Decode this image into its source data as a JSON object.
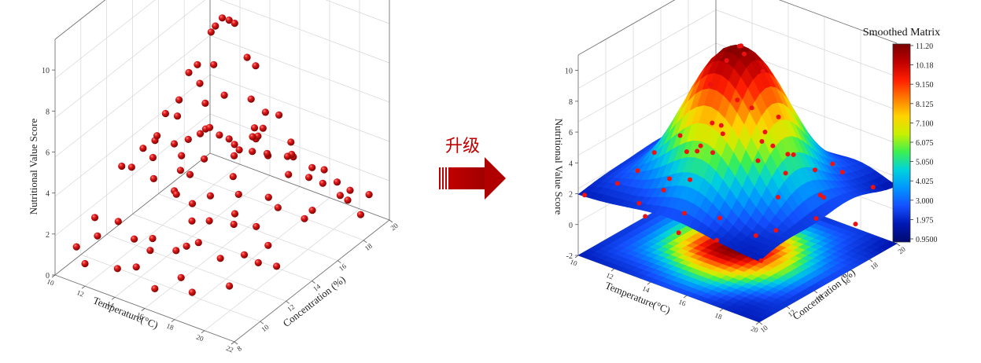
{
  "upgrade_label": "升级",
  "colors": {
    "dot": "#c41414",
    "arrow": "#c00000",
    "axis": "#444444",
    "grid": "#d6d6d6"
  },
  "chart_data": [
    {
      "type": "scatter",
      "title": "",
      "xlabel": "Temperature(°C)",
      "ylabel": "Concentration (%)",
      "zlabel": "Nutritional Value Score",
      "xlim": [
        10,
        22
      ],
      "ylim": [
        8,
        20
      ],
      "zlim": [
        0,
        11.5
      ],
      "x_ticks": [
        "10",
        "12",
        "14",
        "16",
        "18",
        "20",
        "22"
      ],
      "y_ticks": [
        "8",
        "10",
        "12",
        "14",
        "16",
        "18",
        "20"
      ],
      "z_ticks": [
        "0",
        "2",
        "4",
        "6",
        "8",
        "10"
      ],
      "grid": true,
      "points": [
        [
          16.0,
          14.0,
          11.2
        ],
        [
          16.2,
          14.3,
          11.0
        ],
        [
          15.8,
          13.7,
          10.9
        ],
        [
          16.4,
          14.5,
          10.8
        ],
        [
          15.6,
          13.6,
          10.6
        ],
        [
          15.2,
          13.0,
          9.2
        ],
        [
          16.8,
          15.0,
          9.0
        ],
        [
          14.8,
          12.8,
          8.8
        ],
        [
          17.2,
          15.2,
          8.6
        ],
        [
          15.0,
          14.5,
          8.4
        ],
        [
          17.0,
          13.0,
          8.2
        ],
        [
          14.5,
          14.0,
          7.6
        ],
        [
          17.5,
          14.5,
          7.4
        ],
        [
          13.8,
          13.2,
          7.0
        ],
        [
          18.2,
          14.8,
          6.8
        ],
        [
          13.5,
          12.5,
          6.6
        ],
        [
          18.5,
          15.5,
          6.4
        ],
        [
          14.0,
          15.0,
          6.0
        ],
        [
          18.0,
          13.0,
          5.8
        ],
        [
          13.0,
          14.0,
          5.6
        ],
        [
          19.0,
          14.0,
          5.4
        ],
        [
          15.0,
          12.0,
          5.2
        ],
        [
          17.0,
          16.0,
          5.1
        ],
        [
          12.5,
          13.0,
          5.0
        ],
        [
          19.5,
          15.0,
          4.9
        ],
        [
          16.0,
          11.5,
          4.8
        ],
        [
          16.0,
          16.5,
          4.6
        ],
        [
          12.0,
          12.5,
          4.5
        ],
        [
          20.0,
          14.5,
          4.4
        ],
        [
          14.0,
          11.0,
          4.3
        ],
        [
          18.0,
          17.0,
          4.2
        ],
        [
          11.5,
          14.0,
          4.0
        ],
        [
          20.5,
          15.5,
          3.9
        ],
        [
          13.0,
          16.5,
          3.8
        ],
        [
          19.0,
          11.5,
          3.7
        ],
        [
          11.0,
          12.0,
          3.6
        ],
        [
          21.0,
          16.0,
          3.5
        ],
        [
          15.0,
          17.5,
          3.4
        ],
        [
          17.0,
          10.5,
          3.3
        ],
        [
          12.0,
          16.0,
          3.2
        ],
        [
          20.0,
          12.0,
          3.1
        ],
        [
          10.8,
          13.0,
          3.0
        ],
        [
          21.5,
          14.0,
          2.9
        ],
        [
          14.5,
          18.5,
          2.8
        ],
        [
          17.5,
          9.5,
          2.7
        ],
        [
          11.5,
          17.5,
          2.6
        ],
        [
          20.5,
          10.5,
          2.6
        ],
        [
          13.0,
          18.0,
          2.5
        ],
        [
          19.5,
          9.8,
          2.5
        ],
        [
          10.5,
          15.0,
          2.4
        ],
        [
          21.8,
          17.0,
          2.4
        ],
        [
          12.5,
          10.0,
          2.3
        ],
        [
          16.5,
          18.8,
          2.3
        ],
        [
          15.5,
          9.0,
          2.2
        ],
        [
          11.0,
          18.5,
          2.2
        ],
        [
          21.0,
          11.0,
          2.1
        ],
        [
          14.0,
          9.5,
          2.1
        ],
        [
          18.5,
          19.0,
          2.0
        ],
        [
          10.2,
          17.0,
          2.0
        ],
        [
          20.8,
          9.0,
          1.9
        ],
        [
          13.5,
          19.5,
          1.9
        ],
        [
          18.0,
          8.5,
          1.8
        ],
        [
          11.8,
          9.2,
          1.8
        ],
        [
          16.0,
          19.5,
          1.7
        ],
        [
          10.5,
          10.5,
          1.7
        ],
        [
          21.5,
          19.0,
          1.6
        ],
        [
          12.5,
          19.0,
          1.6
        ],
        [
          19.0,
          8.2,
          1.5
        ],
        [
          15.0,
          8.5,
          1.5
        ],
        [
          20.0,
          18.5,
          1.4
        ],
        [
          11.0,
          8.5,
          1.4
        ],
        [
          17.0,
          19.8,
          1.3
        ],
        [
          14.0,
          8.2,
          1.3
        ],
        [
          21.8,
          18.0,
          1.2
        ],
        [
          10.8,
          19.8,
          1.2
        ],
        [
          19.8,
          19.5,
          1.1
        ],
        [
          12.0,
          8.0,
          1.1
        ],
        [
          16.5,
          8.2,
          1.0
        ],
        [
          13.0,
          19.8,
          1.0
        ],
        [
          18.5,
          20.0,
          0.9
        ],
        [
          15.5,
          15.5,
          3.6
        ],
        [
          16.5,
          12.5,
          3.4
        ],
        [
          14.5,
          12.5,
          4.1
        ],
        [
          17.5,
          15.8,
          4.0
        ],
        [
          13.5,
          15.5,
          2.9
        ],
        [
          18.5,
          12.0,
          2.8
        ],
        [
          15.0,
          16.0,
          2.2
        ],
        [
          17.0,
          11.0,
          2.0
        ],
        [
          16.0,
          13.0,
          1.8
        ],
        [
          14.0,
          14.0,
          1.6
        ],
        [
          18.0,
          16.0,
          1.5
        ],
        [
          12.5,
          14.5,
          1.4
        ],
        [
          19.5,
          13.5,
          1.3
        ],
        [
          15.5,
          11.0,
          1.2
        ],
        [
          16.5,
          17.0,
          1.1
        ],
        [
          13.5,
          11.5,
          1.0
        ],
        [
          19.0,
          17.5,
          0.9
        ],
        [
          11.5,
          15.5,
          0.8
        ],
        [
          20.5,
          13.0,
          0.8
        ],
        [
          14.5,
          17.0,
          0.7
        ]
      ]
    },
    {
      "type": "surface",
      "title": "",
      "xlabel": "Temperature(°C)",
      "ylabel": "Concentration (%)",
      "zlabel": "Nutritional Value Score",
      "xlim": [
        10,
        20
      ],
      "ylim": [
        10,
        20
      ],
      "zlim": [
        -2,
        11
      ],
      "x_ticks": [
        "10",
        "12",
        "14",
        "16",
        "18",
        "20"
      ],
      "y_ticks": [
        "10",
        "12",
        "14",
        "16",
        "18",
        "20"
      ],
      "z_ticks": [
        "-2",
        "0",
        "2",
        "4",
        "6",
        "8",
        "10"
      ],
      "grid": true,
      "surface_model": {
        "base": 1.9,
        "peak": 11.2,
        "center_x": 15,
        "center_y": 15,
        "sigma": 2.2
      },
      "has_contour_projection": true,
      "overlay_points": [
        [
          15.2,
          15.0,
          11.3
        ],
        [
          15.6,
          14.7,
          11.1
        ],
        [
          14.8,
          15.4,
          10.9
        ],
        [
          14.4,
          15.0,
          10.0
        ],
        [
          15.8,
          15.8,
          9.5
        ],
        [
          13.8,
          14.6,
          8.4
        ],
        [
          16.4,
          14.2,
          8.2
        ],
        [
          14.0,
          16.3,
          6.6
        ],
        [
          16.2,
          16.4,
          6.4
        ],
        [
          13.6,
          15.0,
          5.6
        ],
        [
          16.8,
          15.2,
          5.4
        ],
        [
          15.0,
          13.2,
          5.2
        ],
        [
          15.0,
          17.0,
          4.6
        ],
        [
          12.8,
          14.2,
          3.8
        ],
        [
          17.2,
          15.6,
          3.6
        ],
        [
          14.2,
          12.6,
          3.4
        ],
        [
          15.8,
          17.6,
          3.2
        ],
        [
          12.2,
          16.0,
          3.0
        ],
        [
          18.0,
          14.0,
          3.2
        ],
        [
          13.2,
          12.0,
          2.6
        ],
        [
          17.0,
          18.0,
          2.5
        ],
        [
          11.0,
          13.0,
          2.4
        ],
        [
          19.0,
          16.0,
          2.6
        ],
        [
          14.8,
          11.4,
          2.1
        ],
        [
          15.2,
          18.8,
          2.3
        ],
        [
          10.4,
          15.0,
          2.3
        ],
        [
          19.8,
          14.4,
          2.4
        ],
        [
          11.6,
          18.4,
          2.3
        ],
        [
          18.6,
          11.6,
          2.2
        ],
        [
          12.6,
          11.0,
          2.0
        ],
        [
          17.6,
          19.2,
          2.0
        ],
        [
          10.8,
          11.8,
          2.1
        ],
        [
          19.6,
          18.8,
          2.1
        ],
        [
          13.0,
          19.4,
          1.9
        ],
        [
          17.2,
          10.6,
          1.8
        ],
        [
          10.2,
          10.2,
          1.9
        ],
        [
          20.0,
          20.0,
          3.4
        ],
        [
          10.6,
          19.6,
          1.8
        ],
        [
          19.8,
          10.4,
          1.7
        ],
        [
          16.0,
          12.4,
          1.8
        ],
        [
          14.0,
          17.8,
          1.9
        ],
        [
          12.0,
          14.0,
          1.8
        ],
        [
          18.2,
          16.8,
          2.0
        ],
        [
          11.4,
          16.8,
          1.9
        ],
        [
          18.8,
          12.8,
          2.0
        ],
        [
          20.0,
          17.0,
          0.8
        ],
        [
          13.4,
          10.4,
          1.8
        ],
        [
          16.6,
          19.8,
          1.8
        ],
        [
          10.0,
          17.4,
          2.0
        ],
        [
          15.4,
          10.2,
          1.7
        ]
      ],
      "colorbar": {
        "title": "Smoothed Matrix",
        "min": 0.95,
        "max": 11.2,
        "tick_labels": [
          "11.20",
          "10.18",
          "9.150",
          "8.125",
          "7.100",
          "6.075",
          "5.050",
          "4.025",
          "3.000",
          "1.975",
          "0.9500"
        ],
        "colors": [
          "#7a0000",
          "#bf0000",
          "#ff1e00",
          "#ff7a00",
          "#ffd200",
          "#c8f000",
          "#3cf050",
          "#00d2dc",
          "#0096ff",
          "#1450ff",
          "#0018b4",
          "#000a6e"
        ]
      }
    }
  ]
}
